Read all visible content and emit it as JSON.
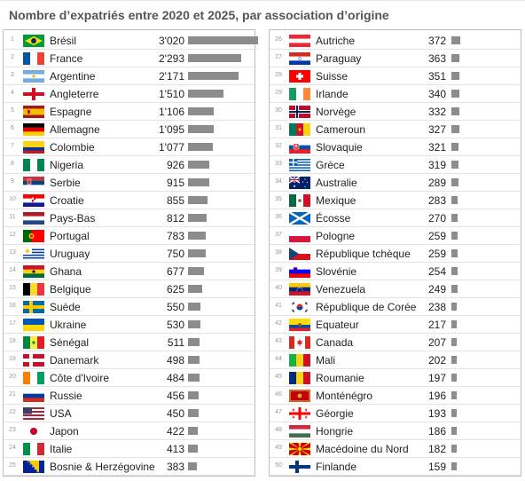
{
  "chart_data": {
    "type": "table",
    "title": "Nombre d’expatriés entre 2020 et 2025, par association d’origine",
    "columns": [
      "rank",
      "flag",
      "country",
      "value",
      "bar"
    ],
    "max_value": 3020,
    "rows": [
      {
        "rank": 1,
        "country": "Brésil",
        "flag": "brazil-flag-icon",
        "value": 3020,
        "label": "3'020"
      },
      {
        "rank": 2,
        "country": "France",
        "flag": "france-flag-icon",
        "value": 2293,
        "label": "2'293"
      },
      {
        "rank": 3,
        "country": "Argentine",
        "flag": "argentina-flag-icon",
        "value": 2171,
        "label": "2'171"
      },
      {
        "rank": 4,
        "country": "Angleterre",
        "flag": "england-flag-icon",
        "value": 1510,
        "label": "1'510"
      },
      {
        "rank": 5,
        "country": "Espagne",
        "flag": "spain-flag-icon",
        "value": 1106,
        "label": "1'106"
      },
      {
        "rank": 6,
        "country": "Allemagne",
        "flag": "germany-flag-icon",
        "value": 1095,
        "label": "1'095"
      },
      {
        "rank": 7,
        "country": "Colombie",
        "flag": "colombia-flag-icon",
        "value": 1077,
        "label": "1'077"
      },
      {
        "rank": 8,
        "country": "Nigeria",
        "flag": "nigeria-flag-icon",
        "value": 926,
        "label": "926"
      },
      {
        "rank": 9,
        "country": "Serbie",
        "flag": "serbia-flag-icon",
        "value": 915,
        "label": "915"
      },
      {
        "rank": 10,
        "country": "Croatie",
        "flag": "croatia-flag-icon",
        "value": 855,
        "label": "855"
      },
      {
        "rank": 11,
        "country": "Pays-Bas",
        "flag": "netherlands-flag-icon",
        "value": 812,
        "label": "812"
      },
      {
        "rank": 12,
        "country": "Portugal",
        "flag": "portugal-flag-icon",
        "value": 783,
        "label": "783"
      },
      {
        "rank": 13,
        "country": "Uruguay",
        "flag": "uruguay-flag-icon",
        "value": 750,
        "label": "750"
      },
      {
        "rank": 14,
        "country": "Ghana",
        "flag": "ghana-flag-icon",
        "value": 677,
        "label": "677"
      },
      {
        "rank": 15,
        "country": "Belgique",
        "flag": "belgium-flag-icon",
        "value": 625,
        "label": "625"
      },
      {
        "rank": 16,
        "country": "Suède",
        "flag": "sweden-flag-icon",
        "value": 550,
        "label": "550"
      },
      {
        "rank": 17,
        "country": "Ukraine",
        "flag": "ukraine-flag-icon",
        "value": 530,
        "label": "530"
      },
      {
        "rank": 18,
        "country": "Sénégal",
        "flag": "senegal-flag-icon",
        "value": 511,
        "label": "511"
      },
      {
        "rank": 19,
        "country": "Danemark",
        "flag": "denmark-flag-icon",
        "value": 498,
        "label": "498"
      },
      {
        "rank": 20,
        "country": "Côte d'Ivoire",
        "flag": "ivory-coast-flag-icon",
        "value": 484,
        "label": "484"
      },
      {
        "rank": 21,
        "country": "Russie",
        "flag": "russia-flag-icon",
        "value": 456,
        "label": "456"
      },
      {
        "rank": 22,
        "country": "USA",
        "flag": "usa-flag-icon",
        "value": 450,
        "label": "450"
      },
      {
        "rank": 23,
        "country": "Japon",
        "flag": "japan-flag-icon",
        "value": 422,
        "label": "422"
      },
      {
        "rank": 24,
        "country": "Italie",
        "flag": "italy-flag-icon",
        "value": 413,
        "label": "413"
      },
      {
        "rank": 25,
        "country": "Bosnie & Herzégovine",
        "flag": "bosnia-flag-icon",
        "value": 383,
        "label": "383"
      },
      {
        "rank": 26,
        "country": "Autriche",
        "flag": "austria-flag-icon",
        "value": 372,
        "label": "372"
      },
      {
        "rank": 27,
        "country": "Paraguay",
        "flag": "paraguay-flag-icon",
        "value": 363,
        "label": "363"
      },
      {
        "rank": 28,
        "country": "Suisse",
        "flag": "switzerland-flag-icon",
        "value": 351,
        "label": "351"
      },
      {
        "rank": 29,
        "country": "Irlande",
        "flag": "ireland-flag-icon",
        "value": 340,
        "label": "340"
      },
      {
        "rank": 30,
        "country": "Norvège",
        "flag": "norway-flag-icon",
        "value": 332,
        "label": "332"
      },
      {
        "rank": 31,
        "country": "Cameroun",
        "flag": "cameroon-flag-icon",
        "value": 327,
        "label": "327"
      },
      {
        "rank": 32,
        "country": "Slovaquie",
        "flag": "slovakia-flag-icon",
        "value": 321,
        "label": "321"
      },
      {
        "rank": 33,
        "country": "Grèce",
        "flag": "greece-flag-icon",
        "value": 319,
        "label": "319"
      },
      {
        "rank": 34,
        "country": "Australie",
        "flag": "australia-flag-icon",
        "value": 289,
        "label": "289"
      },
      {
        "rank": 35,
        "country": "Mexique",
        "flag": "mexico-flag-icon",
        "value": 283,
        "label": "283"
      },
      {
        "rank": 36,
        "country": "Écosse",
        "flag": "scotland-flag-icon",
        "value": 270,
        "label": "270"
      },
      {
        "rank": 37,
        "country": "Pologne",
        "flag": "poland-flag-icon",
        "value": 259,
        "label": "259"
      },
      {
        "rank": 38,
        "country": "République tchèque",
        "flag": "czech-flag-icon",
        "value": 259,
        "label": "259"
      },
      {
        "rank": 39,
        "country": "Slovénie",
        "flag": "slovenia-flag-icon",
        "value": 254,
        "label": "254"
      },
      {
        "rank": 40,
        "country": "Venezuela",
        "flag": "venezuela-flag-icon",
        "value": 249,
        "label": "249"
      },
      {
        "rank": 41,
        "country": "République de Corée",
        "flag": "south-korea-flag-icon",
        "value": 238,
        "label": "238"
      },
      {
        "rank": 42,
        "country": "Equateur",
        "flag": "ecuador-flag-icon",
        "value": 217,
        "label": "217"
      },
      {
        "rank": 43,
        "country": "Canada",
        "flag": "canada-flag-icon",
        "value": 207,
        "label": "207"
      },
      {
        "rank": 44,
        "country": "Mali",
        "flag": "mali-flag-icon",
        "value": 202,
        "label": "202"
      },
      {
        "rank": 45,
        "country": "Roumanie",
        "flag": "romania-flag-icon",
        "value": 197,
        "label": "197"
      },
      {
        "rank": 46,
        "country": "Monténégro",
        "flag": "montenegro-flag-icon",
        "value": 196,
        "label": "196"
      },
      {
        "rank": 47,
        "country": "Géorgie",
        "flag": "georgia-flag-icon",
        "value": 193,
        "label": "193"
      },
      {
        "rank": 48,
        "country": "Hongrie",
        "flag": "hungary-flag-icon",
        "value": 186,
        "label": "186"
      },
      {
        "rank": 49,
        "country": "Macédoine du Nord",
        "flag": "north-macedonia-flag-icon",
        "value": 182,
        "label": "182"
      },
      {
        "rank": 50,
        "country": "Finlande",
        "flag": "finland-flag-icon",
        "value": 159,
        "label": "159"
      }
    ]
  },
  "colors": {
    "bar": "#8c8c8c",
    "title": "#555555"
  }
}
